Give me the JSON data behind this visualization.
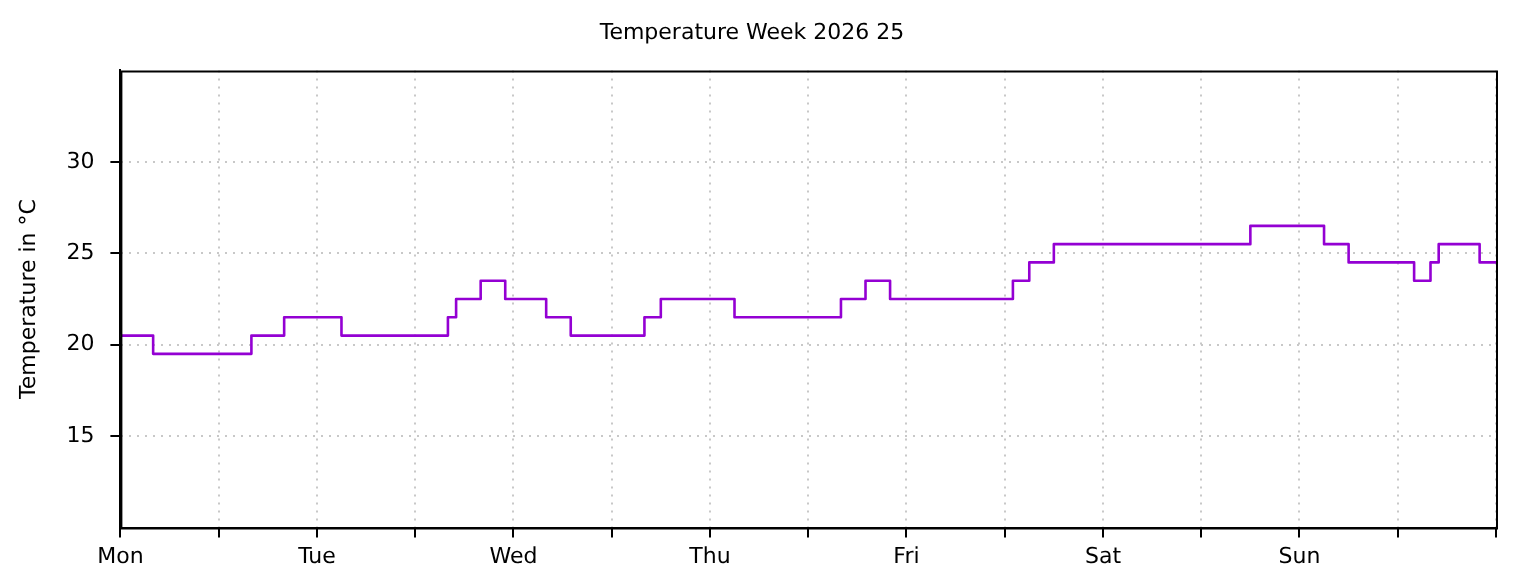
{
  "chart_data": {
    "type": "step",
    "title": "Temperature Week 2026 25",
    "ylabel": "Temperature in °C",
    "categories": [
      "Mon",
      null,
      null,
      null,
      null,
      null,
      null,
      null,
      null,
      null,
      null,
      null,
      null,
      null,
      null,
      null,
      null,
      null,
      null,
      null,
      null,
      null,
      null,
      null,
      "Tue",
      null,
      null,
      null,
      null,
      null,
      null,
      null,
      null,
      null,
      null,
      null,
      null,
      null,
      null,
      null,
      null,
      null,
      null,
      null,
      null,
      null,
      null,
      null,
      "Wed",
      null,
      null,
      null,
      null,
      null,
      null,
      null,
      null,
      null,
      null,
      null,
      null,
      null,
      null,
      null,
      null,
      null,
      null,
      null,
      null,
      null,
      null,
      null,
      "Thu",
      null,
      null,
      null,
      null,
      null,
      null,
      null,
      null,
      null,
      null,
      null,
      null,
      null,
      null,
      null,
      null,
      null,
      null,
      null,
      null,
      null,
      null,
      null,
      "Fri",
      null,
      null,
      null,
      null,
      null,
      null,
      null,
      null,
      null,
      null,
      null,
      null,
      null,
      null,
      null,
      null,
      null,
      null,
      null,
      null,
      null,
      null,
      null,
      "Sat",
      null,
      null,
      null,
      null,
      null,
      null,
      null,
      null,
      null,
      null,
      null,
      null,
      null,
      null,
      null,
      null,
      null,
      null,
      null,
      null,
      null,
      null,
      null,
      "Sun",
      null,
      null,
      null,
      null,
      null,
      null,
      null,
      null,
      null,
      null,
      null,
      null,
      null,
      null,
      null,
      null,
      null,
      null,
      null,
      null,
      null,
      null,
      null,
      null
    ],
    "series": [
      {
        "color": "#9400d3",
        "values": [
          20.5,
          20.5,
          20.5,
          20.5,
          19.5,
          19.5,
          19.5,
          19.5,
          19.5,
          19.5,
          19.5,
          19.5,
          19.5,
          19.5,
          19.5,
          19.5,
          20.5,
          20.5,
          20.5,
          20.5,
          21.5,
          21.5,
          21.5,
          21.5,
          21.5,
          21.5,
          21.5,
          20.5,
          20.5,
          20.5,
          20.5,
          20.5,
          20.5,
          20.5,
          20.5,
          20.5,
          20.5,
          20.5,
          20.5,
          20.5,
          21.5,
          22.5,
          22.5,
          22.5,
          23.5,
          23.5,
          23.5,
          22.5,
          22.5,
          22.5,
          22.5,
          22.5,
          21.5,
          21.5,
          21.5,
          20.5,
          20.5,
          20.5,
          20.5,
          20.5,
          20.5,
          20.5,
          20.5,
          20.5,
          21.5,
          21.5,
          22.5,
          22.5,
          22.5,
          22.5,
          22.5,
          22.5,
          22.5,
          22.5,
          22.5,
          21.5,
          21.5,
          21.5,
          21.5,
          21.5,
          21.5,
          21.5,
          21.5,
          21.5,
          21.5,
          21.5,
          21.5,
          21.5,
          22.5,
          22.5,
          22.5,
          23.5,
          23.5,
          23.5,
          22.5,
          22.5,
          22.5,
          22.5,
          22.5,
          22.5,
          22.5,
          22.5,
          22.5,
          22.5,
          22.5,
          22.5,
          22.5,
          22.5,
          22.5,
          23.5,
          23.5,
          24.5,
          24.5,
          24.5,
          25.5,
          25.5,
          25.5,
          25.5,
          25.5,
          25.5,
          25.5,
          25.5,
          25.5,
          25.5,
          25.5,
          25.5,
          25.5,
          25.5,
          25.5,
          25.5,
          25.5,
          25.5,
          25.5,
          25.5,
          25.5,
          25.5,
          25.5,
          25.5,
          26.5,
          26.5,
          26.5,
          26.5,
          26.5,
          26.5,
          26.5,
          26.5,
          26.5,
          25.5,
          25.5,
          25.5,
          24.5,
          24.5,
          24.5,
          24.5,
          24.5,
          24.5,
          24.5,
          24.5,
          23.5,
          23.5,
          24.5,
          25.5,
          25.5,
          25.5,
          25.5,
          25.5,
          24.5,
          24.5,
          24.5
        ]
      }
    ],
    "ylim": [
      10,
      35
    ],
    "yticks": [
      15,
      20,
      25,
      30
    ],
    "grid": true,
    "legend": false,
    "line_style": "solid",
    "marker": "none"
  }
}
